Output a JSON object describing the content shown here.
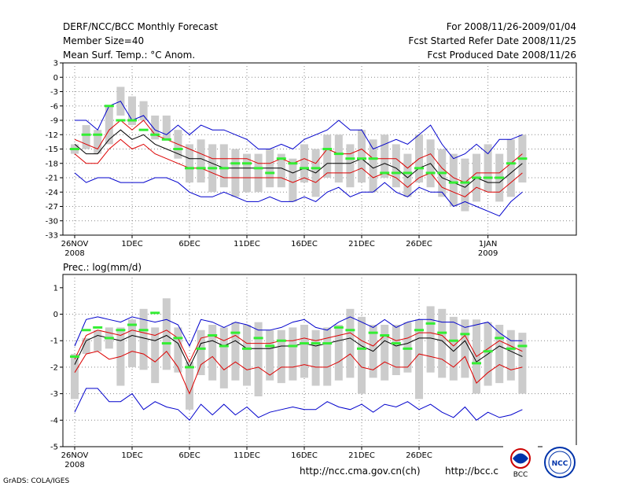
{
  "header": {
    "title": "DERF/NCC/BCC Monthly Forecast",
    "member_size": "Member Size=40",
    "period": "For 2008/11/26-2009/01/04",
    "started": "Fcst Started Refer Date 2008/11/25",
    "produced": "Fcst Produced Date 2008/11/26"
  },
  "footer": {
    "grads": "GrADS: COLA/IGES",
    "url1": "http://ncc.cma.gov.cn(ch)",
    "url2": "http://bcc.c",
    "logo1": "BCC",
    "logo2": "NCC"
  },
  "colors": {
    "ensemble_bar": "#cccccc",
    "outer_envelope": "#0000cc",
    "inner_band": "#dd0000",
    "mean": "#000000",
    "observed": "#33ee33",
    "grid": "#888888"
  },
  "chart_data": [
    {
      "type": "line",
      "title": "Mean Surf. Temp.: °C Anom.",
      "ylim": [
        -33,
        3
      ],
      "yticks": [
        "3",
        "0",
        "-3",
        "-6",
        "-9",
        "-12",
        "-15",
        "-18",
        "-21",
        "-24",
        "-27",
        "-30",
        "-33"
      ],
      "xticks": [
        {
          "day": 0,
          "label": "26NOV",
          "sub": "2008"
        },
        {
          "day": 5,
          "label": "1DEC",
          "sub": ""
        },
        {
          "day": 10,
          "label": "6DEC",
          "sub": ""
        },
        {
          "day": 15,
          "label": "11DEC",
          "sub": ""
        },
        {
          "day": 20,
          "label": "16DEC",
          "sub": ""
        },
        {
          "day": 25,
          "label": "21DEC",
          "sub": ""
        },
        {
          "day": 30,
          "label": "26DEC",
          "sub": ""
        },
        {
          "day": 36,
          "label": "1JAN",
          "sub": "2009"
        }
      ],
      "days": 40,
      "bar_low": [
        -16,
        -15,
        -16,
        -14,
        -8,
        -10,
        -9,
        -13,
        -13,
        -17,
        -22,
        -22,
        -24,
        -23,
        -25,
        -24,
        -24,
        -23,
        -23,
        -26,
        -22,
        -25,
        -21,
        -22,
        -23,
        -22,
        -24,
        -21,
        -23,
        -25,
        -22,
        -23,
        -25,
        -27,
        -28,
        -26,
        -24,
        -26,
        -25,
        -22
      ],
      "bar_high": [
        -14,
        -10,
        -11,
        -6,
        -2,
        -4,
        -5,
        -8,
        -8,
        -11,
        -14,
        -13,
        -14,
        -14,
        -15,
        -16,
        -16,
        -15,
        -16,
        -17,
        -14,
        -15,
        -12,
        -12,
        -14,
        -11,
        -13,
        -12,
        -14,
        -16,
        -12,
        -13,
        -15,
        -16,
        -17,
        -16,
        -14,
        -16,
        -13,
        -12
      ],
      "max": [
        -9,
        -9,
        -11,
        -6,
        -5,
        -9,
        -8,
        -11,
        -12,
        -10,
        -12,
        -10,
        -11,
        -11,
        -12,
        -13,
        -15,
        -15,
        -14,
        -15,
        -13,
        -12,
        -11,
        -9,
        -11,
        -11,
        -15,
        -14,
        -13,
        -14,
        -12,
        -10,
        -14,
        -17,
        -16,
        -14,
        -16,
        -13,
        -13,
        -12
      ],
      "inner_high": [
        -13,
        -14,
        -15,
        -11,
        -9,
        -11,
        -9,
        -12,
        -13,
        -14,
        -15,
        -16,
        -17,
        -17,
        -17,
        -17,
        -18,
        -18,
        -17,
        -18,
        -17,
        -18,
        -15,
        -16,
        -16,
        -15,
        -17,
        -17,
        -17,
        -19,
        -17,
        -16,
        -19,
        -21,
        -22,
        -20,
        -20,
        -20,
        -18,
        -16
      ],
      "mean": [
        -14,
        -16,
        -16,
        -13,
        -11,
        -13,
        -12,
        -14,
        -15,
        -16,
        -17,
        -17,
        -18,
        -19,
        -19,
        -19,
        -19,
        -19,
        -19,
        -20,
        -19,
        -20,
        -18,
        -18,
        -18,
        -17,
        -19,
        -18,
        -19,
        -21,
        -19,
        -18,
        -21,
        -22,
        -23,
        -21,
        -22,
        -22,
        -20,
        -18
      ],
      "inner_low": [
        -16,
        -18,
        -18,
        -15,
        -13,
        -15,
        -14,
        -16,
        -17,
        -18,
        -19,
        -19,
        -20,
        -21,
        -21,
        -21,
        -21,
        -21,
        -21,
        -22,
        -21,
        -22,
        -20,
        -20,
        -20,
        -19,
        -21,
        -20,
        -21,
        -23,
        -21,
        -20,
        -23,
        -24,
        -25,
        -23,
        -24,
        -24,
        -22,
        -20
      ],
      "min": [
        -20,
        -22,
        -21,
        -21,
        -22,
        -22,
        -22,
        -21,
        -21,
        -22,
        -24,
        -25,
        -25,
        -24,
        -25,
        -26,
        -26,
        -25,
        -26,
        -26,
        -25,
        -26,
        -24,
        -23,
        -25,
        -24,
        -24,
        -22,
        -24,
        -25,
        -23,
        -24,
        -24,
        -27,
        -26,
        -27,
        -28,
        -29,
        -26,
        -24
      ],
      "observed": [
        -15,
        -12,
        -12,
        -6,
        -9,
        -9,
        -11,
        -12,
        -13,
        -15,
        -19,
        -19,
        -19,
        -19,
        -18,
        -18,
        -19,
        -20,
        -17,
        -18,
        -19,
        -19,
        -15,
        -16,
        -17,
        -17,
        -17,
        -20,
        -20,
        -20,
        -19,
        -20,
        -20,
        -22,
        -22,
        -21,
        -21,
        -21,
        -18,
        -17
      ]
    },
    {
      "type": "line",
      "title": "Prec.: log(mm/d)",
      "ylim": [
        -5,
        1.5
      ],
      "yticks": [
        "1",
        "0",
        "-1",
        "-2",
        "-3",
        "-4",
        "-5"
      ],
      "xticks": [
        {
          "day": 0,
          "label": "26NOV",
          "sub": "2008"
        },
        {
          "day": 5,
          "label": "1DEC",
          "sub": ""
        },
        {
          "day": 10,
          "label": "6DEC",
          "sub": ""
        },
        {
          "day": 15,
          "label": "11DEC",
          "sub": ""
        },
        {
          "day": 20,
          "label": "16DEC",
          "sub": ""
        },
        {
          "day": 25,
          "label": "21DEC",
          "sub": ""
        },
        {
          "day": 30,
          "label": "26DEC",
          "sub": ""
        }
      ],
      "days": 40,
      "bar_low": [
        -3.2,
        -1.5,
        -1.4,
        -1.3,
        -2.7,
        -2.0,
        -2.1,
        -2.6,
        -2.1,
        -2.2,
        -3.6,
        -2.3,
        -2.5,
        -2.8,
        -2.5,
        -2.7,
        -3.1,
        -2.5,
        -2.6,
        -2.5,
        -2.4,
        -2.7,
        -2.7,
        -2.5,
        -2.4,
        -3.0,
        -2.4,
        -2.5,
        -2.3,
        -2.2,
        -3.2,
        -2.2,
        -2.4,
        -2.5,
        -2.4,
        -3.0,
        -2.7,
        -2.6,
        -2.5,
        -3.0
      ],
      "bar_high": [
        -1.5,
        -0.9,
        -0.6,
        -0.5,
        -0.5,
        -0.2,
        0.2,
        -0.5,
        0.6,
        -0.5,
        -1.8,
        -0.6,
        -0.4,
        -0.5,
        -0.3,
        -0.4,
        -0.3,
        -0.6,
        -0.6,
        -0.5,
        -0.4,
        -0.6,
        -0.5,
        -0.4,
        0.2,
        -0.1,
        -0.4,
        -0.4,
        -0.4,
        -0.3,
        -0.2,
        0.3,
        0.2,
        -0.1,
        -0.2,
        -0.2,
        -0.3,
        -0.4,
        -0.6,
        -0.7
      ],
      "max": [
        -1.2,
        -0.2,
        -0.1,
        -0.2,
        -0.3,
        -0.1,
        -0.2,
        -0.3,
        -0.2,
        -0.4,
        -1.2,
        -0.2,
        -0.3,
        -0.5,
        -0.3,
        -0.4,
        -0.6,
        -0.6,
        -0.5,
        -0.3,
        -0.2,
        -0.5,
        -0.6,
        -0.3,
        -0.1,
        -0.3,
        -0.5,
        -0.2,
        -0.5,
        -0.3,
        -0.2,
        -0.2,
        -0.3,
        -0.3,
        -0.5,
        -0.4,
        -0.3,
        -0.7,
        -1.0,
        -1.0
      ],
      "inner_high": [
        -1.7,
        -0.8,
        -0.6,
        -0.7,
        -0.8,
        -0.6,
        -0.7,
        -0.8,
        -0.6,
        -0.9,
        -1.8,
        -0.9,
        -0.8,
        -1.0,
        -0.8,
        -1.1,
        -1.1,
        -1.1,
        -1.0,
        -1.0,
        -0.9,
        -1.0,
        -0.9,
        -0.8,
        -0.7,
        -1.0,
        -1.2,
        -0.8,
        -1.0,
        -0.9,
        -0.7,
        -0.7,
        -0.8,
        -1.2,
        -0.8,
        -1.6,
        -1.3,
        -1.0,
        -1.2,
        -1.4
      ],
      "mean": [
        -1.9,
        -1.0,
        -0.8,
        -0.9,
        -1.0,
        -0.8,
        -0.9,
        -1.0,
        -0.8,
        -1.1,
        -2.0,
        -1.1,
        -1.0,
        -1.2,
        -1.0,
        -1.3,
        -1.3,
        -1.3,
        -1.2,
        -1.2,
        -1.1,
        -1.2,
        -1.1,
        -1.0,
        -0.9,
        -1.2,
        -1.4,
        -1.0,
        -1.2,
        -1.1,
        -0.9,
        -0.9,
        -1.0,
        -1.4,
        -1.0,
        -1.8,
        -1.5,
        -1.2,
        -1.4,
        -1.6
      ],
      "inner_low": [
        -2.2,
        -1.5,
        -1.4,
        -1.7,
        -1.6,
        -1.4,
        -1.5,
        -1.8,
        -1.4,
        -2.0,
        -3.0,
        -1.9,
        -1.6,
        -2.1,
        -1.8,
        -2.1,
        -2.0,
        -2.3,
        -2.0,
        -2.0,
        -1.9,
        -2.0,
        -2.0,
        -1.8,
        -1.5,
        -2.0,
        -2.1,
        -1.8,
        -2.0,
        -2.0,
        -1.5,
        -1.6,
        -1.7,
        -2.0,
        -1.6,
        -2.6,
        -2.2,
        -1.9,
        -2.1,
        -2.0
      ],
      "min": [
        -3.7,
        -2.8,
        -2.8,
        -3.3,
        -3.3,
        -3.0,
        -3.6,
        -3.3,
        -3.5,
        -3.6,
        -4.0,
        -3.4,
        -3.8,
        -3.4,
        -3.8,
        -3.5,
        -3.9,
        -3.7,
        -3.6,
        -3.5,
        -3.6,
        -3.6,
        -3.3,
        -3.5,
        -3.6,
        -3.4,
        -3.7,
        -3.4,
        -3.5,
        -3.3,
        -3.6,
        -3.4,
        -3.7,
        -3.9,
        -3.5,
        -4.0,
        -3.7,
        -3.9,
        -3.8,
        -3.6
      ],
      "observed": [
        -1.6,
        -0.6,
        -0.5,
        -0.9,
        -0.6,
        -0.4,
        -0.6,
        0.05,
        -1.1,
        -0.9,
        -2.0,
        -1.3,
        -0.8,
        -1.2,
        -0.7,
        -1.3,
        -0.9,
        -1.2,
        -1.0,
        -1.2,
        -1.1,
        -1.1,
        -1.1,
        -0.5,
        -0.6,
        -1.3,
        -0.7,
        -0.8,
        -1.1,
        -1.3,
        -0.6,
        -0.35,
        -0.7,
        -1.0,
        -0.75,
        -1.85,
        -1.4,
        -0.9,
        -1.3,
        -1.2
      ]
    }
  ]
}
